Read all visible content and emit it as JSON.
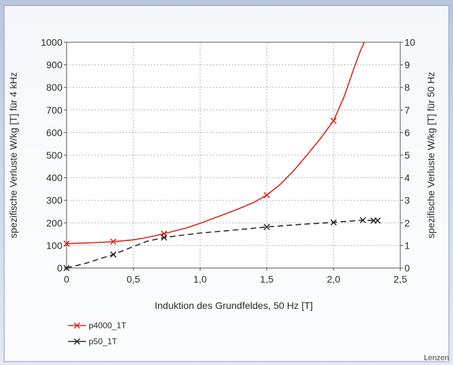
{
  "chart_data": {
    "type": "line",
    "xlabel": "Induktion des Grundfeldes, 50 Hz [T]",
    "ylabel_left": "spezifische Verluste W/kg [T] für 4 kHz",
    "ylabel_right": "spezifische Verluste W/kg [T] für 50 Hz",
    "xlim": [
      0,
      2.5
    ],
    "ylim_left": [
      0,
      1000
    ],
    "ylim_right": [
      0,
      10
    ],
    "x_ticks": [
      0,
      0.5,
      1.0,
      1.5,
      2.0,
      2.5
    ],
    "x_tick_labels": [
      "0",
      "0,5",
      "1,0",
      "1,5",
      "2,0",
      "2,5"
    ],
    "y_left_ticks": [
      0,
      100,
      200,
      300,
      400,
      500,
      600,
      700,
      800,
      900,
      1000
    ],
    "y_right_ticks": [
      0,
      1,
      2,
      3,
      4,
      5,
      6,
      7,
      8,
      9,
      10
    ],
    "grid": true,
    "legend_position": "bottom-left",
    "series": [
      {
        "name": "p4000_1T",
        "axis": "left",
        "color": "#d9241c",
        "dash": "solid",
        "marker_x": [
          0,
          0.35,
          0.73,
          1.5,
          2.0
        ],
        "marker_y": [
          108,
          117,
          152,
          323,
          652
        ],
        "curve_x": [
          0,
          0.1,
          0.2,
          0.35,
          0.5,
          0.6,
          0.73,
          0.9,
          1.0,
          1.1,
          1.2,
          1.3,
          1.4,
          1.5,
          1.6,
          1.7,
          1.8,
          1.9,
          2.0,
          2.08,
          2.15,
          2.2,
          2.23
        ],
        "curve_y": [
          108,
          110,
          112,
          117,
          125,
          135,
          152,
          178,
          198,
          220,
          242,
          265,
          290,
          323,
          370,
          430,
          500,
          572,
          652,
          760,
          880,
          960,
          1000
        ]
      },
      {
        "name": "p50_1T",
        "axis": "right",
        "color": "#2a2a2a",
        "dash": "dashed",
        "marker_x": [
          0,
          0.35,
          0.73,
          1.5,
          2.0,
          2.22,
          2.3,
          2.33
        ],
        "marker_y": [
          0,
          0.6,
          1.35,
          1.82,
          2.02,
          2.12,
          2.1,
          2.1
        ],
        "curve_x": [
          0,
          0.15,
          0.35,
          0.5,
          0.6,
          0.73,
          0.9,
          1.0,
          1.2,
          1.5,
          1.8,
          2.0,
          2.22,
          2.3,
          2.33
        ],
        "curve_y": [
          0,
          0.22,
          0.6,
          0.95,
          1.18,
          1.35,
          1.48,
          1.55,
          1.65,
          1.82,
          1.95,
          2.02,
          2.12,
          2.1,
          2.1
        ]
      }
    ],
    "credit": "Lenzen"
  }
}
